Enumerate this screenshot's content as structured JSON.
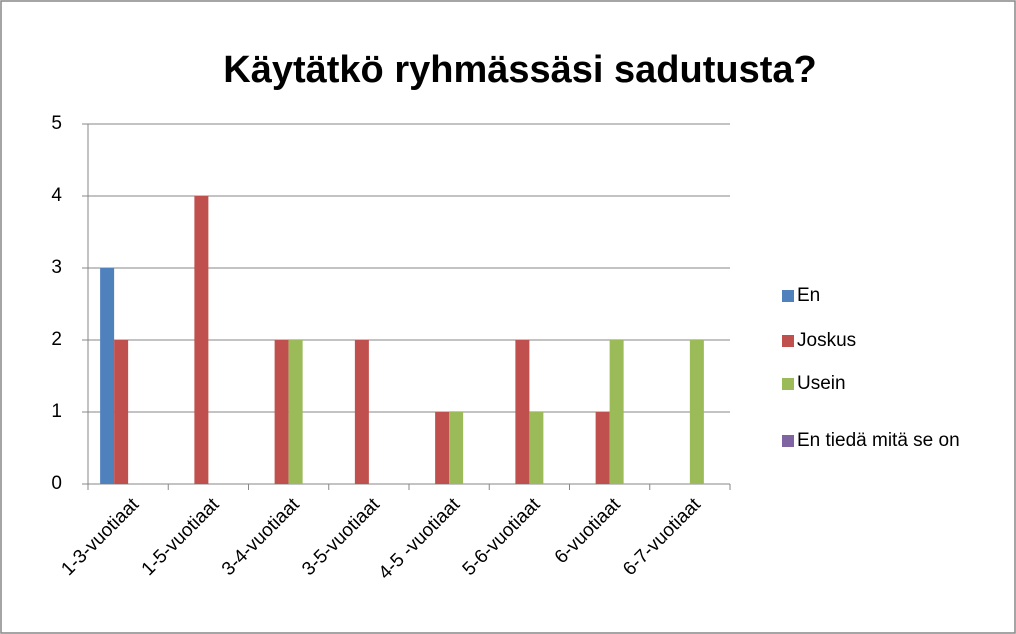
{
  "chart_data": {
    "type": "bar",
    "title": "Käytätkö ryhmässäsi sadutusta?",
    "categories": [
      "1-3-vuotiaat",
      "1-5-vuotiaat",
      "3-4-vuotiaat",
      "3-5-vuotiaat",
      "4-5 -vuotiaat",
      "5-6-vuotiaat",
      "6-vuotiaat",
      "6-7-vuotiaat"
    ],
    "series": [
      {
        "name": "En",
        "color": "#4f81bd",
        "values": [
          3,
          0,
          0,
          0,
          0,
          0,
          0,
          0
        ]
      },
      {
        "name": "Joskus",
        "color": "#c0504d",
        "values": [
          2,
          4,
          2,
          2,
          1,
          2,
          1,
          0
        ]
      },
      {
        "name": "Usein",
        "color": "#9bbb59",
        "values": [
          0,
          0,
          2,
          0,
          1,
          1,
          2,
          2
        ]
      },
      {
        "name": "En tiedä mitä se on",
        "color": "#8064a2",
        "values": [
          0,
          0,
          0,
          0,
          0,
          0,
          0,
          0
        ]
      }
    ],
    "ylim": [
      0,
      5
    ],
    "yticks": [
      0,
      1,
      2,
      3,
      4,
      5
    ],
    "grid": true,
    "legend": "right"
  }
}
